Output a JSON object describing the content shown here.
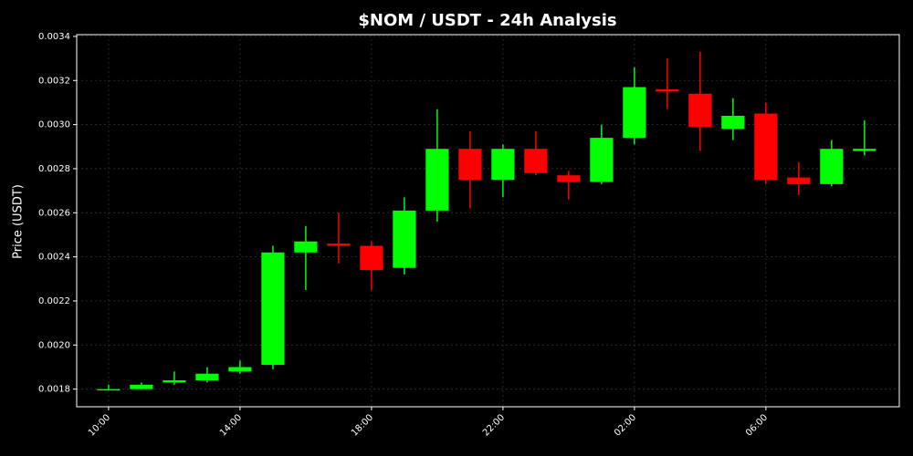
{
  "chart_data": {
    "type": "candlestick",
    "title": "$NOM / USDT - 24h Analysis",
    "y_label": "Price (USDT)",
    "x": [
      0,
      1,
      2,
      3,
      4,
      5,
      6,
      7,
      8,
      9,
      10,
      11,
      12,
      13,
      14,
      15,
      16,
      17,
      18,
      19,
      20,
      21,
      22,
      23
    ],
    "open": [
      0.0018,
      0.0018,
      0.00183,
      0.00184,
      0.00188,
      0.00191,
      0.00242,
      0.00246,
      0.00245,
      0.00235,
      0.00261,
      0.00289,
      0.00275,
      0.00289,
      0.00277,
      0.00274,
      0.00294,
      0.00316,
      0.00314,
      0.00298,
      0.00305,
      0.00276,
      0.00273,
      0.00288
    ],
    "high": [
      0.00182,
      0.00183,
      0.00188,
      0.0019,
      0.00193,
      0.00245,
      0.00254,
      0.0026,
      0.00247,
      0.00267,
      0.00307,
      0.00297,
      0.00291,
      0.00297,
      0.00279,
      0.003,
      0.00326,
      0.0033,
      0.00333,
      0.00312,
      0.0031,
      0.00283,
      0.00293,
      0.00302
    ],
    "low": [
      0.0018,
      0.0018,
      0.00182,
      0.00183,
      0.00187,
      0.00189,
      0.00225,
      0.00237,
      0.00225,
      0.00232,
      0.00256,
      0.00262,
      0.00267,
      0.00277,
      0.00266,
      0.00273,
      0.00291,
      0.00307,
      0.00288,
      0.00293,
      0.00273,
      0.00268,
      0.00272,
      0.00286
    ],
    "close": [
      0.0018,
      0.00182,
      0.00184,
      0.00187,
      0.0019,
      0.00242,
      0.00247,
      0.00245,
      0.00234,
      0.00261,
      0.00289,
      0.00275,
      0.00289,
      0.00278,
      0.00274,
      0.00294,
      0.00317,
      0.00315,
      0.00299,
      0.00304,
      0.00275,
      0.00273,
      0.00289,
      0.00289
    ],
    "up_color": "#00ff00",
    "down_color": "#ff0000",
    "xlim": [
      -0.97,
      24.06
    ],
    "xticks": [
      {
        "value": 0,
        "label": "10:00"
      },
      {
        "value": 4,
        "label": "14:00"
      },
      {
        "value": 8,
        "label": "18:00"
      },
      {
        "value": 12,
        "label": "22:00"
      },
      {
        "value": 16,
        "label": "02:00"
      },
      {
        "value": 20,
        "label": "06:00"
      }
    ],
    "ylim": [
      0.00172,
      0.003408
    ],
    "yticks": [
      0.0018,
      {
        "value": 0.002,
        "label": "0.0020"
      },
      0.0022,
      0.0024,
      0.0026,
      0.0028,
      {
        "value": 0.003,
        "label": "0.0030"
      },
      0.0032,
      0.0034
    ],
    "grid": true
  }
}
